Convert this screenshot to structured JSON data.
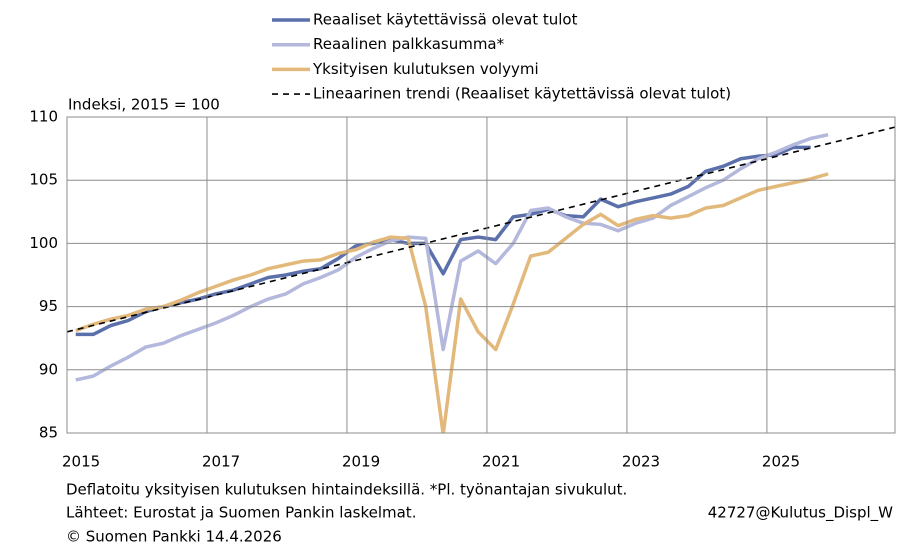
{
  "chart_data": {
    "type": "line",
    "y_axis_label": "Indeksi, 2015 = 100",
    "x": [
      2015.125,
      2015.375,
      2015.625,
      2015.875,
      2016.125,
      2016.375,
      2016.625,
      2016.875,
      2017.125,
      2017.375,
      2017.625,
      2017.875,
      2018.125,
      2018.375,
      2018.625,
      2018.875,
      2019.125,
      2019.375,
      2019.625,
      2019.875,
      2020.125,
      2020.375,
      2020.625,
      2020.875,
      2021.125,
      2021.375,
      2021.625,
      2021.875,
      2022.125,
      2022.375,
      2022.625,
      2022.875,
      2023.125,
      2023.375,
      2023.625,
      2023.875,
      2024.125,
      2024.375,
      2024.625,
      2024.875,
      2025.125,
      2025.375,
      2025.625,
      2025.875
    ],
    "series": [
      {
        "name": "Reaaliset käytettävissä olevat tulot",
        "color": "#5b6fab",
        "values": [
          92.8,
          92.8,
          93.5,
          93.9,
          94.6,
          95.0,
          95.3,
          95.6,
          96.0,
          96.3,
          96.8,
          97.3,
          97.5,
          97.8,
          98.0,
          98.8,
          99.8,
          100.0,
          100.3,
          100.0,
          100.0,
          97.6,
          100.3,
          100.5,
          100.3,
          102.1,
          102.3,
          102.7,
          102.2,
          102.1,
          103.5,
          102.9,
          103.3,
          103.6,
          103.9,
          104.5,
          105.7,
          106.1,
          106.7,
          106.9,
          107.0,
          107.6,
          107.6,
          null
        ]
      },
      {
        "name": "Reaalinen palkkasumma*",
        "color": "#b3b8dc",
        "values": [
          89.2,
          89.5,
          90.3,
          91.0,
          91.8,
          92.1,
          92.7,
          93.2,
          93.7,
          94.3,
          95.0,
          95.6,
          96.0,
          96.8,
          97.3,
          97.9,
          98.9,
          99.6,
          100.2,
          100.5,
          100.4,
          91.6,
          98.6,
          99.4,
          98.4,
          100.0,
          102.6,
          102.8,
          102.1,
          101.6,
          101.5,
          101.0,
          101.6,
          102.0,
          103.0,
          103.7,
          104.4,
          105.0,
          105.9,
          106.7,
          107.2,
          107.8,
          108.3,
          108.6
        ]
      },
      {
        "name": "Yksityisen kulutuksen volyymi",
        "color": "#e2b97b",
        "values": [
          93.1,
          93.6,
          94.0,
          94.3,
          94.8,
          95.0,
          95.5,
          96.1,
          96.6,
          97.1,
          97.5,
          98.0,
          98.3,
          98.6,
          98.7,
          99.2,
          99.5,
          100.1,
          100.5,
          100.4,
          95.0,
          84.9,
          95.6,
          93.0,
          91.6,
          95.2,
          99.0,
          99.3,
          100.4,
          101.5,
          102.3,
          101.4,
          101.9,
          102.2,
          102.0,
          102.2,
          102.8,
          103.0,
          103.6,
          104.2,
          104.5,
          104.8,
          105.1,
          105.5
        ]
      },
      {
        "name": "Lineaarinen trendi (Reaaliset käytettävissä olevat tulot)",
        "color": "#000000",
        "dashed": true,
        "x": [
          2015.0,
          2026.83
        ],
        "values": [
          93.0,
          109.2
        ]
      }
    ],
    "xlim": [
      2015.0,
      2026.83
    ],
    "xticks": [
      2015,
      2017,
      2019,
      2021,
      2023,
      2025
    ],
    "ylim": [
      85,
      110
    ],
    "yticks": [
      85,
      90,
      95,
      100,
      105,
      110
    ],
    "grid": true,
    "notes": [
      "Deflatoitu yksityisen kulutuksen hintaindeksillä. *Pl. työnantajan sivukulut.",
      "Lähteet: Eurostat ja Suomen Pankin laskelmat.",
      "© Suomen Pankki 14.4.2026"
    ],
    "code": "42727@Kulutus_Displ_W"
  }
}
